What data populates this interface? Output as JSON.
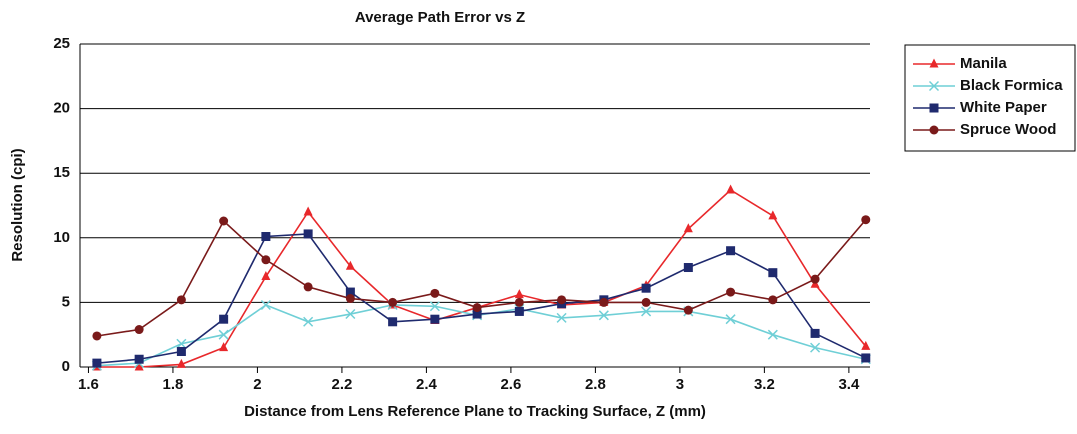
{
  "chart_data": {
    "type": "line",
    "title": "Average Path Error vs Z",
    "x_label": "Distance from Lens Reference Plane to Tracking Surface, Z (mm)",
    "y_label": "Resolution (cpi)",
    "x": [
      1.62,
      1.72,
      1.82,
      1.92,
      2.02,
      2.12,
      2.22,
      2.32,
      2.42,
      2.52,
      2.62,
      2.72,
      2.82,
      2.92,
      3.02,
      3.12,
      3.22,
      3.32,
      3.44
    ],
    "series": [
      {
        "name": "Manila",
        "color": "#e8282b",
        "marker": "triangle",
        "values": [
          0,
          0,
          0.2,
          1.5,
          7.0,
          12.0,
          7.8,
          4.8,
          3.6,
          4.6,
          5.6,
          4.8,
          5.0,
          6.3,
          10.7,
          13.7,
          11.7,
          6.4,
          1.6
        ]
      },
      {
        "name": "Black Formica",
        "color": "#6fcfd6",
        "marker": "x",
        "values": [
          0.1,
          0.3,
          1.8,
          2.5,
          4.8,
          3.5,
          4.1,
          4.8,
          4.7,
          4.0,
          4.5,
          3.8,
          4.0,
          4.3,
          4.3,
          3.7,
          2.5,
          1.5,
          0.6
        ]
      },
      {
        "name": "White Paper",
        "color": "#1f2a6e",
        "marker": "square",
        "values": [
          0.3,
          0.6,
          1.2,
          3.7,
          10.1,
          10.3,
          5.8,
          3.5,
          3.7,
          4.1,
          4.3,
          4.9,
          5.2,
          6.1,
          7.7,
          9.0,
          7.3,
          2.6,
          0.7
        ]
      },
      {
        "name": "Spruce Wood",
        "color": "#7a1a1a",
        "marker": "circle",
        "values": [
          2.4,
          2.9,
          5.2,
          11.3,
          8.3,
          6.2,
          5.3,
          5.0,
          5.7,
          4.6,
          5.0,
          5.2,
          5.0,
          5.0,
          4.4,
          5.8,
          5.2,
          6.8,
          11.4
        ]
      }
    ],
    "xlim": [
      1.58,
      3.45
    ],
    "xticks": [
      1.6,
      1.8,
      2,
      2.2,
      2.4,
      2.6,
      2.8,
      3,
      3.2,
      3.4
    ],
    "ylim": [
      0,
      25
    ],
    "yticks": [
      0,
      5,
      10,
      15,
      20,
      25
    ],
    "grid": true,
    "legend": "right"
  }
}
